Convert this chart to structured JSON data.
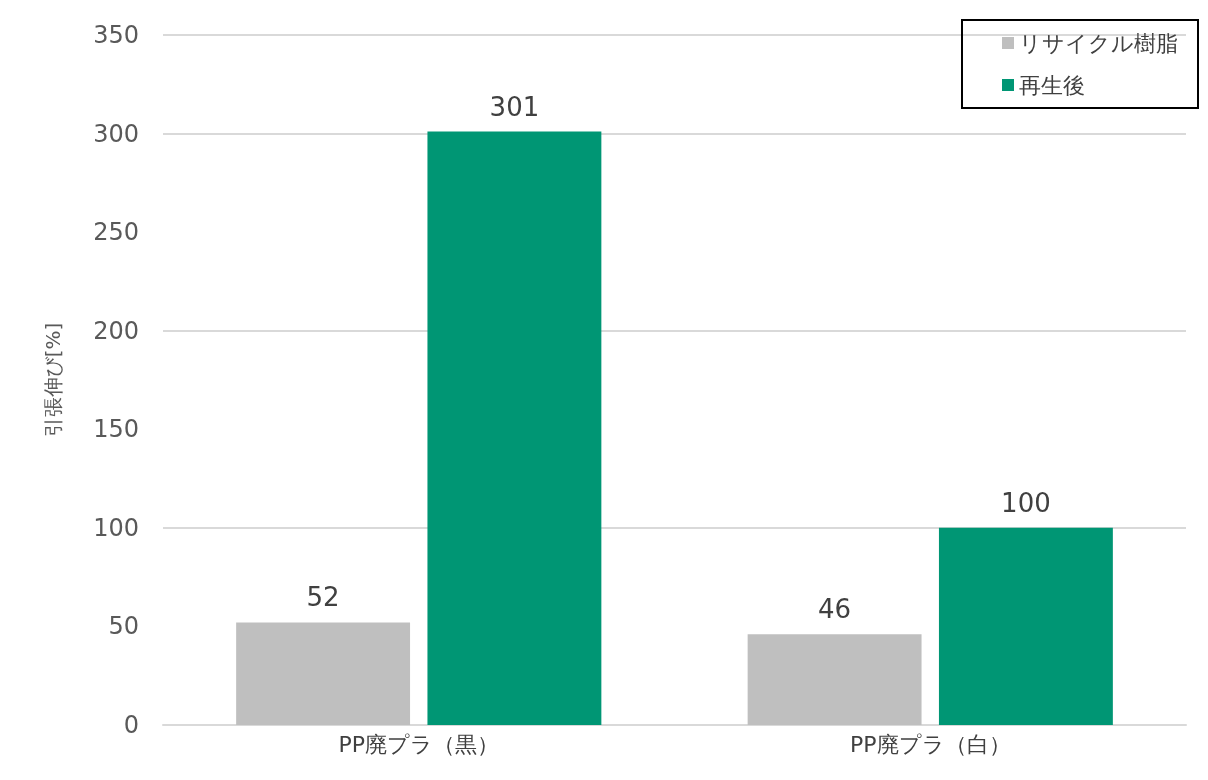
{
  "chart_data": {
    "type": "bar",
    "ylabel": "引張伸び[%]",
    "categories": [
      "PP廃プラ（黒）",
      "PP廃プラ（白）"
    ],
    "series": [
      {
        "name": "リサイクル樹脂",
        "color": "#bfbfbf",
        "values": [
          52,
          46
        ]
      },
      {
        "name": "再生後",
        "color": "#009674",
        "values": [
          301,
          100
        ]
      }
    ],
    "ylim": [
      0,
      350
    ],
    "yticks": [
      0,
      50,
      100,
      150,
      200,
      250,
      300,
      350
    ],
    "grid": "y",
    "legend": "top right",
    "data_labels": true
  }
}
